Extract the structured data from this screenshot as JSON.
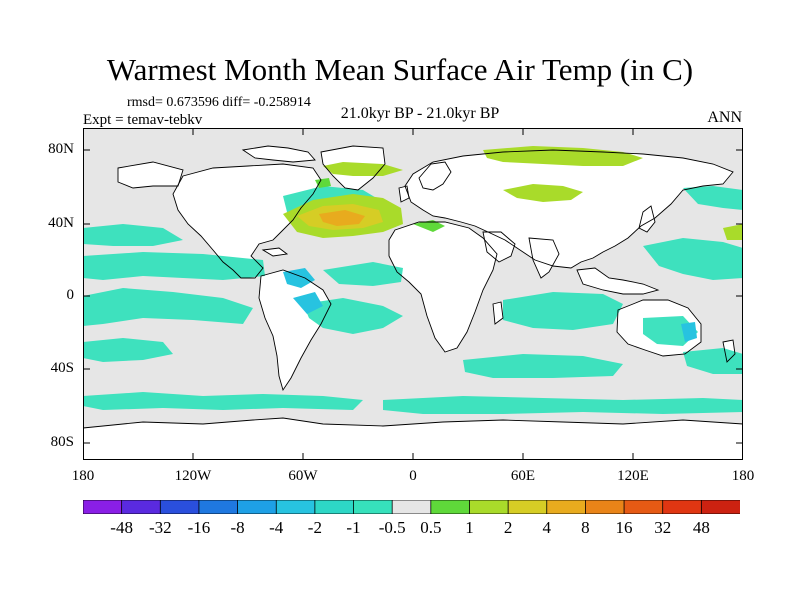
{
  "figure": {
    "title": "Warmest Month Mean Surface Air Temp (in C)",
    "stats": "rmsd= 0.673596 diff= -0.258914",
    "experiment": "Expt = temav-tebkv",
    "period": "21.0kyr BP - 21.0kyr BP",
    "season": "ANN"
  },
  "axes": {
    "lat_labels": [
      "80N",
      "40N",
      "0",
      "40S",
      "80S"
    ],
    "lon_labels": [
      "180",
      "120W",
      "60W",
      "0",
      "60E",
      "120E",
      "180"
    ]
  },
  "colorbar": {
    "labels": [
      "-48",
      "-32",
      "-16",
      "-8",
      "-4",
      "-2",
      "-1",
      "-0.5",
      "0.5",
      "1",
      "2",
      "4",
      "8",
      "16",
      "32",
      "48"
    ],
    "colors": [
      "#8a1fe6",
      "#5a2ae0",
      "#2a4fdd",
      "#1f78e0",
      "#1ea0e6",
      "#27c3e0",
      "#2dd7c6",
      "#36e1bc",
      "#e6e6e6",
      "#5fd93a",
      "#a9db2a",
      "#d6cd25",
      "#e8ab1e",
      "#e98418",
      "#e65a14",
      "#e03612",
      "#cc2211"
    ]
  },
  "legend_colors": {
    "background_near_zero": "#e6e6e6",
    "land": "#ffffff",
    "cool_small": "#36e1bc",
    "cool": "#27c3e0",
    "warm_small": "#5fd93a",
    "warm": "#a9db2a",
    "warm_mid": "#d6cd25",
    "warm_high": "#e8ab1e"
  }
}
